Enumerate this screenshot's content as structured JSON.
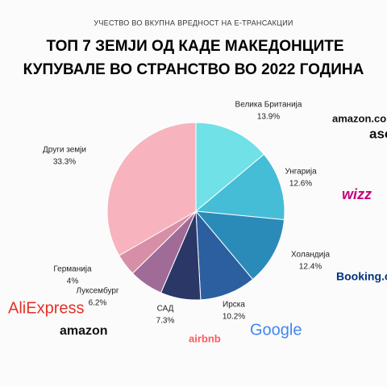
{
  "chart_data": {
    "type": "pie",
    "subtitle": "УЧЕСТВО ВО ВКУПНА ВРЕДНОСТ НА Е-ТРАНСАКЦИИ",
    "title": [
      "ТОП 7 ЗЕМЈИ ОД КАДЕ МАКЕДОНЦИТЕ",
      "КУПУВАЛЕ ВО СТРАНСТВО ВО 2022 ГОДИНА"
    ],
    "categories": [
      "Велика Британија",
      "Унгарија",
      "Холандија",
      "Ирска",
      "САД",
      "Луксембург",
      "Германија",
      "Други земји"
    ],
    "values": [
      13.9,
      12.6,
      12.4,
      10.2,
      7.3,
      6.2,
      4,
      33.3
    ],
    "value_labels": [
      "13.9%",
      "12.6%",
      "12.4%",
      "10.2%",
      "7.3%",
      "6.2%",
      "4%",
      "33.3%"
    ],
    "colors": [
      "#6fe1e7",
      "#46bdd7",
      "#2a8bb9",
      "#2b5f9f",
      "#2b3767",
      "#a06b96",
      "#d68fa6",
      "#f7b4be"
    ],
    "logos": [
      "amazon.co.uk",
      "asos",
      "wizz",
      "Booking.com",
      "AliExpress",
      "amazon",
      "airbnb",
      "Google"
    ]
  }
}
